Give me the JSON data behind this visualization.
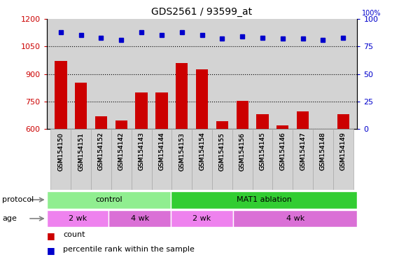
{
  "title": "GDS2561 / 93599_at",
  "samples": [
    "GSM154150",
    "GSM154151",
    "GSM154152",
    "GSM154142",
    "GSM154143",
    "GSM154144",
    "GSM154153",
    "GSM154154",
    "GSM154155",
    "GSM154156",
    "GSM154145",
    "GSM154146",
    "GSM154147",
    "GSM154148",
    "GSM154149"
  ],
  "counts": [
    970,
    853,
    668,
    648,
    800,
    800,
    960,
    925,
    645,
    755,
    680,
    620,
    695,
    598,
    680
  ],
  "percentiles": [
    88,
    85,
    83,
    81,
    88,
    85,
    88,
    85,
    82,
    84,
    83,
    82,
    82,
    81,
    83
  ],
  "ylim_left": [
    600,
    1200
  ],
  "ylim_right": [
    0,
    100
  ],
  "yticks_left": [
    600,
    750,
    900,
    1050,
    1200
  ],
  "yticks_right": [
    0,
    25,
    50,
    75,
    100
  ],
  "bar_color": "#cc0000",
  "dot_color": "#0000cc",
  "grid_color": "#000000",
  "bg_color": "#d3d3d3",
  "protocol_groups": [
    {
      "label": "control",
      "start": 0,
      "end": 6,
      "color": "#90ee90"
    },
    {
      "label": "MAT1 ablation",
      "start": 6,
      "end": 15,
      "color": "#32cd32"
    }
  ],
  "age_groups": [
    {
      "label": "2 wk",
      "start": 0,
      "end": 3,
      "color": "#ee82ee"
    },
    {
      "label": "4 wk",
      "start": 3,
      "end": 6,
      "color": "#da70d6"
    },
    {
      "label": "2 wk",
      "start": 6,
      "end": 9,
      "color": "#ee82ee"
    },
    {
      "label": "4 wk",
      "start": 9,
      "end": 15,
      "color": "#da70d6"
    }
  ],
  "legend_count_color": "#cc0000",
  "legend_dot_color": "#0000cc",
  "label_protocol": "protocol",
  "label_age": "age",
  "label_count": "count",
  "label_percentile": "percentile rank within the sample"
}
